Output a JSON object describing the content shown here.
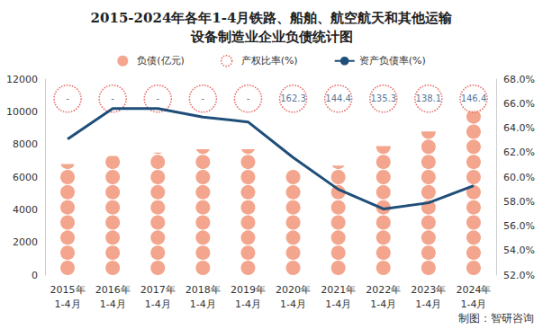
{
  "chart_data": {
    "type": "bar",
    "title": "2015-2024年各年1-4月铁路、船舶、航空航天和其他运输\n设备制造业企业负债统计图",
    "annotations": [
      "制图：智研咨询"
    ],
    "categories": [
      "2015年\n1-4月",
      "2016年\n1-4月",
      "2017年\n1-4月",
      "2018年\n1-4月",
      "2019年\n1-4月",
      "2020年\n1-4月",
      "2021年\n1-4月",
      "2022年\n1-4月",
      "2023年\n1-4月",
      "2024年\n1-4月"
    ],
    "ylim": [
      0,
      12000
    ],
    "yticks": [
      0,
      2000,
      4000,
      6000,
      8000,
      10000,
      12000
    ],
    "y2lim": [
      52,
      68
    ],
    "y2ticks": [
      {
        "value": 52,
        "label": "52.0%"
      },
      {
        "value": 54,
        "label": "54.0%"
      },
      {
        "value": 56,
        "label": "56.0%"
      },
      {
        "value": 58,
        "label": "58.0%"
      },
      {
        "value": 60,
        "label": "60.0%"
      },
      {
        "value": 62,
        "label": "62.0%"
      },
      {
        "value": 64,
        "label": "64.0%"
      },
      {
        "value": 66,
        "label": "66.0%"
      },
      {
        "value": 68,
        "label": "68.0%"
      }
    ],
    "legend": "top",
    "grid": false,
    "series": [
      {
        "name": "负债(亿元)",
        "type": "bar",
        "color": "#f3a58d",
        "marker": "circle",
        "values": [
          6800,
          7300,
          7500,
          7700,
          7700,
          6500,
          6700,
          7900,
          8800,
          10200
        ]
      },
      {
        "name": "产权比率(%)",
        "type": "scatter",
        "color": "#e0443c",
        "marker": "circle",
        "line_style": "dotted",
        "data_labels": true,
        "values": [
          null,
          null,
          null,
          null,
          null,
          162.3,
          144.4,
          135.3,
          138.1,
          146.4
        ],
        "value_labels": [
          "-",
          "-",
          "-",
          "-",
          "-",
          "162.3",
          "144.4",
          "135.3",
          "138.1",
          "146.4"
        ]
      },
      {
        "name": "资产负债率(%)",
        "type": "line",
        "axis": "y2",
        "color": "#1f4e79",
        "values": [
          63.1,
          65.6,
          65.6,
          64.9,
          64.5,
          61.6,
          59.0,
          57.4,
          57.9,
          59.3
        ]
      }
    ]
  }
}
